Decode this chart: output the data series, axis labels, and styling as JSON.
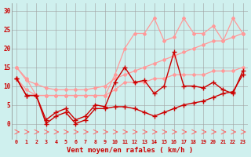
{
  "xlabel": "Vent moyen/en rafales ( km/h )",
  "x": [
    0,
    1,
    2,
    3,
    4,
    5,
    6,
    7,
    8,
    9,
    10,
    11,
    12,
    13,
    14,
    15,
    16,
    17,
    18,
    19,
    20,
    21,
    22,
    23
  ],
  "line_upper_max": [
    15,
    12,
    7.5,
    7.5,
    7.5,
    7.5,
    7.5,
    7.5,
    7.5,
    7.5,
    13,
    20,
    24,
    24,
    28,
    22,
    23,
    28,
    24,
    24,
    26,
    22,
    28,
    24
  ],
  "line_upper_trend": [
    15,
    11.5,
    10.5,
    9.5,
    9.0,
    9.0,
    9.0,
    9.0,
    9.5,
    10.0,
    12,
    13,
    14,
    15,
    16,
    17,
    18,
    19,
    20,
    21,
    22,
    22,
    23,
    24
  ],
  "line_lower_trend": [
    12,
    9,
    7.5,
    7.5,
    7.5,
    7.5,
    7.5,
    7.5,
    7.5,
    7.5,
    9,
    11,
    11,
    11,
    12,
    12,
    13,
    13,
    13,
    13,
    14,
    14,
    14,
    15
  ],
  "line_mid_volatile": [
    12,
    7.5,
    7.5,
    1,
    3,
    4,
    1,
    2,
    5,
    4.5,
    11,
    15,
    11,
    11.5,
    8,
    10,
    19,
    10,
    10,
    9.5,
    11,
    9,
    8,
    14
  ],
  "line_low_volatile": [
    12,
    7.5,
    7.5,
    0,
    2,
    3,
    0,
    1,
    4,
    4,
    4.5,
    4.5,
    4,
    3,
    2,
    3,
    4,
    5,
    5.5,
    6,
    7,
    8,
    8.5,
    13
  ],
  "bg_color": "#cff0ee",
  "grid_color": "#a0a0a0",
  "light_pink": "#ff9999",
  "dark_red": "#cc0000",
  "arrow_color": "#ff6666",
  "ylim": [
    -4,
    32
  ],
  "xlim": [
    -0.5,
    23.5
  ],
  "yticks": [
    0,
    5,
    10,
    15,
    20,
    25,
    30
  ]
}
